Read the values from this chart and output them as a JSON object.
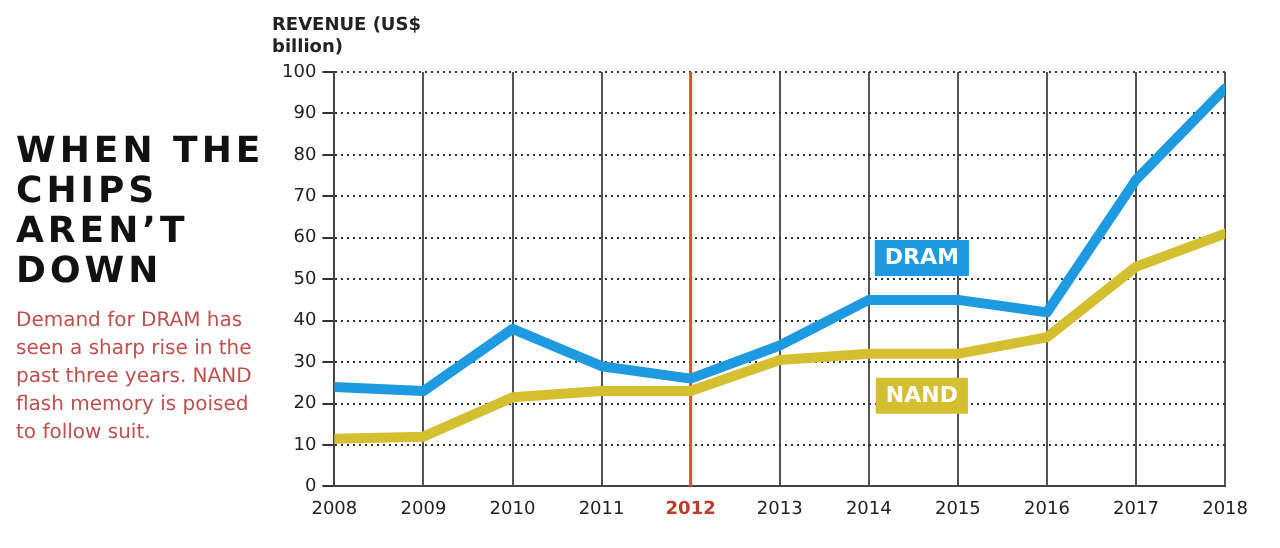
{
  "chart_data": {
    "type": "line",
    "title": "WHEN THE CHIPS AREN’T DOWN",
    "subtitle": "Demand for DRAM has seen a sharp rise in the past three years. NAND flash memory is poised to follow suit.",
    "ylabel": "REVENUE (US$ billion)",
    "x": [
      2008,
      2009,
      2010,
      2011,
      2012,
      2013,
      2014,
      2015,
      2016,
      2017,
      2018
    ],
    "series": [
      {
        "name": "DRAM",
        "color": "#1e9be0",
        "values": [
          24,
          23,
          38,
          29,
          26,
          34,
          45,
          45,
          42,
          74,
          96
        ]
      },
      {
        "name": "NAND",
        "color": "#d4bf30",
        "values": [
          11.5,
          12,
          21.5,
          23,
          23,
          30.5,
          32,
          32,
          36,
          53,
          61
        ]
      }
    ],
    "xlim": [
      2008,
      2018
    ],
    "xticks": [
      2008,
      2009,
      2010,
      2011,
      2012,
      2013,
      2014,
      2015,
      2016,
      2017,
      2018
    ],
    "ylim": [
      0,
      100
    ],
    "yticks": [
      0,
      10,
      20,
      30,
      40,
      50,
      60,
      70,
      80,
      90,
      100
    ],
    "ref_lines": [
      {
        "axis": "x",
        "value": 2012,
        "color": "#d9502a"
      }
    ],
    "grid": true,
    "legend": false,
    "marker": "none",
    "line_style": "solid"
  }
}
